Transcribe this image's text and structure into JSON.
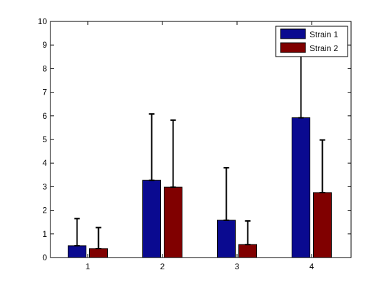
{
  "chart_data": {
    "type": "bar",
    "categories": [
      "1",
      "2",
      "3",
      "4"
    ],
    "series": [
      {
        "name": "Strain 1",
        "color": "#0a0a90",
        "values": [
          0.5,
          3.27,
          1.58,
          5.92
        ],
        "error_upper": [
          1.65,
          6.08,
          3.8,
          8.9
        ]
      },
      {
        "name": "Strain 2",
        "color": "#800000",
        "values": [
          0.38,
          2.98,
          0.55,
          2.75
        ],
        "error_upper": [
          1.27,
          5.82,
          1.55,
          4.98
        ]
      }
    ],
    "title": "",
    "xlabel": "",
    "ylabel": "",
    "ylim": [
      0,
      10
    ],
    "yticks": [
      "0",
      "1",
      "2",
      "3",
      "4",
      "5",
      "6",
      "7",
      "8",
      "9",
      "10"
    ],
    "grid": false,
    "legend_position": "top-right"
  }
}
